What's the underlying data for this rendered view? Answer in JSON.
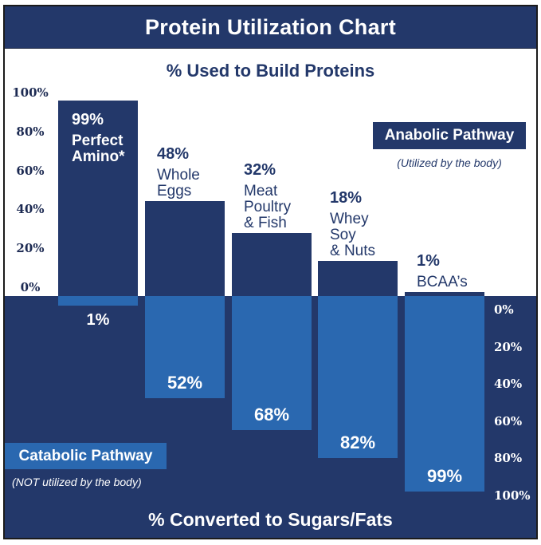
{
  "title": "Protein Utilization Chart",
  "chart_data": {
    "type": "bar",
    "title": "Protein Utilization Chart",
    "upper_section": {
      "heading": "% Used to Build Proteins",
      "legend_label": "Anabolic Pathway",
      "legend_sub": "(Utilized by the body)",
      "axis_ticks": [
        "100%",
        "80%",
        "60%",
        "40%",
        "20%",
        "0%"
      ],
      "axis_side": "left",
      "axis_range": [
        0,
        100
      ]
    },
    "lower_section": {
      "heading": "% Converted to Sugars/Fats",
      "legend_label": "Catabolic Pathway",
      "legend_sub": "(NOT utilized by the body)",
      "axis_ticks": [
        "0%",
        "20%",
        "40%",
        "60%",
        "80%",
        "100%"
      ],
      "axis_side": "right",
      "axis_range": [
        0,
        100
      ]
    },
    "categories": [
      "Perfect Amino*",
      "Whole Eggs",
      "Meat Poultry & Fish",
      "Whey Soy & Nuts",
      "BCAA’s"
    ],
    "series": [
      {
        "name": "% Used to Build Proteins (Anabolic)",
        "values": [
          99,
          48,
          32,
          18,
          1
        ]
      },
      {
        "name": "% Converted to Sugars/Fats (Catabolic)",
        "values": [
          1,
          52,
          68,
          82,
          99
        ]
      }
    ],
    "bars": [
      {
        "up": 99,
        "up_label": "99%",
        "name_lines": [
          "Perfect",
          "Amino*"
        ],
        "down": 1,
        "down_label": "1%",
        "name_position": "inside"
      },
      {
        "up": 48,
        "up_label": "48%",
        "name_lines": [
          "Whole",
          "Eggs"
        ],
        "down": 52,
        "down_label": "52%",
        "name_position": "above"
      },
      {
        "up": 32,
        "up_label": "32%",
        "name_lines": [
          "Meat",
          "Poultry",
          "& Fish"
        ],
        "down": 68,
        "down_label": "68%",
        "name_position": "above"
      },
      {
        "up": 18,
        "up_label": "18%",
        "name_lines": [
          "Whey",
          "Soy",
          "& Nuts"
        ],
        "down": 82,
        "down_label": "82%",
        "name_position": "above"
      },
      {
        "up": 1,
        "up_label": "1%",
        "name_lines": [
          "BCAA’s"
        ],
        "down": 99,
        "down_label": "99%",
        "name_position": "above"
      }
    ],
    "colors": {
      "navy": "#23386a",
      "blue": "#2a68b0",
      "background": "#ffffff",
      "axis_text_dark": "#1c2a52",
      "axis_text_light": "#ffffff"
    },
    "legend_positions": {
      "anabolic": "upper-right",
      "catabolic": "lower-left"
    },
    "grid": false
  }
}
